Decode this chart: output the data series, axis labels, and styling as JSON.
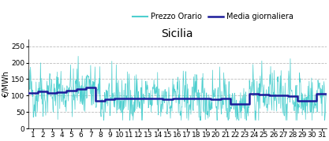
{
  "title": "Sicilia",
  "ylabel": "€/MWh",
  "xlim": [
    0.5,
    31.5
  ],
  "ylim": [
    0,
    270
  ],
  "yticks": [
    0,
    50,
    100,
    150,
    200,
    250
  ],
  "ytick_labels": [
    "0",
    "50",
    "100",
    "150",
    "200",
    "250"
  ],
  "xticks": [
    1,
    2,
    3,
    4,
    5,
    6,
    7,
    8,
    9,
    10,
    11,
    12,
    13,
    14,
    15,
    16,
    17,
    18,
    19,
    20,
    21,
    22,
    23,
    24,
    25,
    26,
    27,
    28,
    29,
    30,
    31
  ],
  "daily_avg": [
    108,
    112,
    108,
    110,
    115,
    120,
    125,
    85,
    88,
    92,
    90,
    90,
    92,
    90,
    88,
    90,
    92,
    90,
    90,
    88,
    90,
    75,
    75,
    105,
    103,
    100,
    100,
    98,
    85,
    85,
    105
  ],
  "hourly_noise": 55,
  "hourly_min_base": 25,
  "cyan_color": "#4ECFCF",
  "blue_color": "#1C1C9B",
  "legend_cyan": "Prezzo Orario",
  "legend_blue": "Media giornaliera",
  "title_fontsize": 10,
  "label_fontsize": 7,
  "tick_fontsize": 6.5,
  "legend_fontsize": 7,
  "grid_color": "#BBBBBB",
  "grid_style": "--",
  "bg_color": "#F0F0F0"
}
